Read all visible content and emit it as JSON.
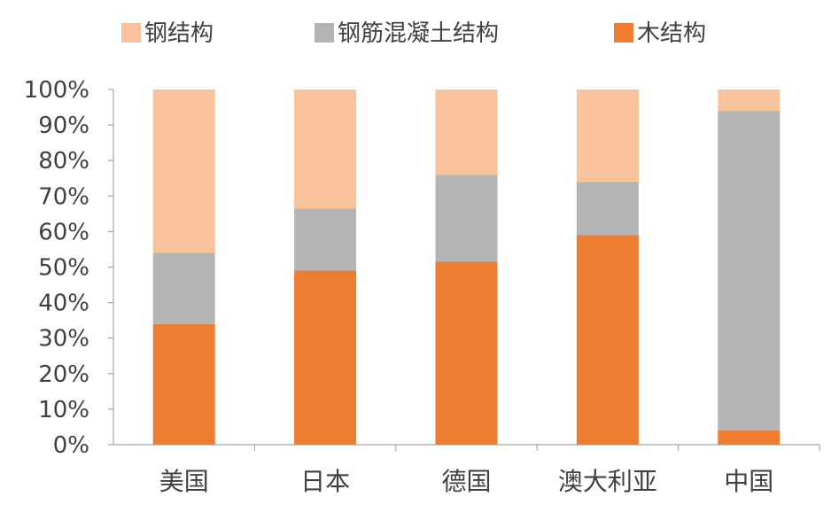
{
  "chart_data": {
    "type": "bar",
    "stacked": true,
    "categories": [
      "美国",
      "日本",
      "德国",
      "澳大利亚",
      "中国"
    ],
    "series": [
      {
        "name": "木结构",
        "color": "#ED7D31",
        "values": [
          34,
          49,
          51.5,
          59,
          4
        ]
      },
      {
        "name": "钢筋混凝土结构",
        "color": "#B4B4B4",
        "values": [
          20,
          17.5,
          24.5,
          15,
          90
        ]
      },
      {
        "name": "钢结构",
        "color": "#F8C29A",
        "values": [
          46,
          33.5,
          24,
          26,
          6
        ]
      }
    ],
    "legend_order": [
      "钢结构",
      "钢筋混凝土结构",
      "木结构"
    ],
    "legend_position": "top",
    "ylim": [
      0,
      100
    ],
    "yticks": [
      "0%",
      "10%",
      "20%",
      "30%",
      "40%",
      "50%",
      "60%",
      "70%",
      "80%",
      "90%",
      "100%"
    ],
    "grid": false,
    "title": "",
    "xlabel": "",
    "ylabel": ""
  }
}
